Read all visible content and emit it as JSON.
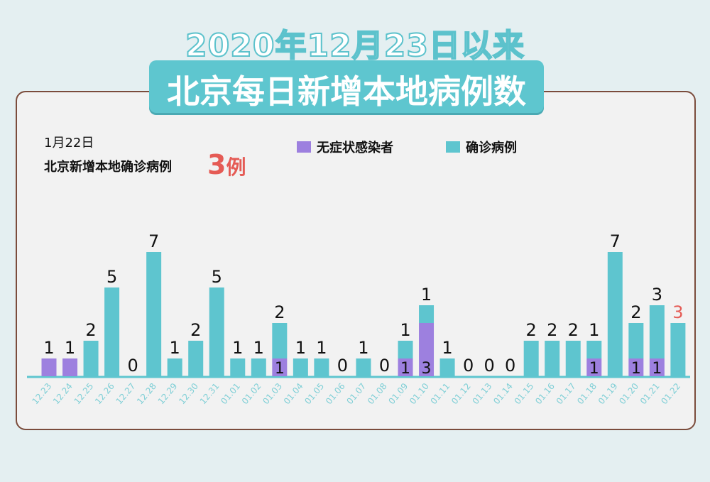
{
  "title_line1": "2020年12月23日以来",
  "title_line2": "北京每日新增本地病例数",
  "summary": {
    "date": "1月22日",
    "label": "北京新增本地确诊病例",
    "value": "3",
    "unit": "例"
  },
  "colors": {
    "confirmed": "#5ec5cf",
    "asymptomatic": "#9d80df",
    "highlight": "#e55b55",
    "date_label": "#7fcfd6"
  },
  "chart_data": {
    "type": "bar",
    "stacked": true,
    "legend_position": "top-right",
    "grid": false,
    "categories": [
      "12.23",
      "12.24",
      "12.25",
      "12.26",
      "12.27",
      "12.28",
      "12.29",
      "12.30",
      "12.31",
      "01.01",
      "01.02",
      "01.03",
      "01.04",
      "01.05",
      "01.06",
      "01.07",
      "01.08",
      "01.09",
      "01.10",
      "01.11",
      "01.12",
      "01.13",
      "01.14",
      "01.15",
      "01.16",
      "01.17",
      "01.18",
      "01.19",
      "01.20",
      "01.21",
      "01.22"
    ],
    "series": [
      {
        "name": "无症状感染者",
        "values": [
          1,
          1,
          0,
          0,
          0,
          0,
          0,
          0,
          0,
          0,
          0,
          1,
          0,
          0,
          0,
          0,
          0,
          1,
          3,
          0,
          0,
          0,
          0,
          0,
          0,
          0,
          1,
          0,
          1,
          1,
          0
        ]
      },
      {
        "name": "确诊病例",
        "values": [
          0,
          0,
          2,
          5,
          0,
          7,
          1,
          2,
          5,
          1,
          1,
          2,
          1,
          1,
          0,
          1,
          0,
          1,
          1,
          1,
          0,
          0,
          0,
          2,
          2,
          2,
          1,
          7,
          2,
          3,
          3
        ]
      }
    ],
    "ylim": [
      0,
      8
    ]
  }
}
